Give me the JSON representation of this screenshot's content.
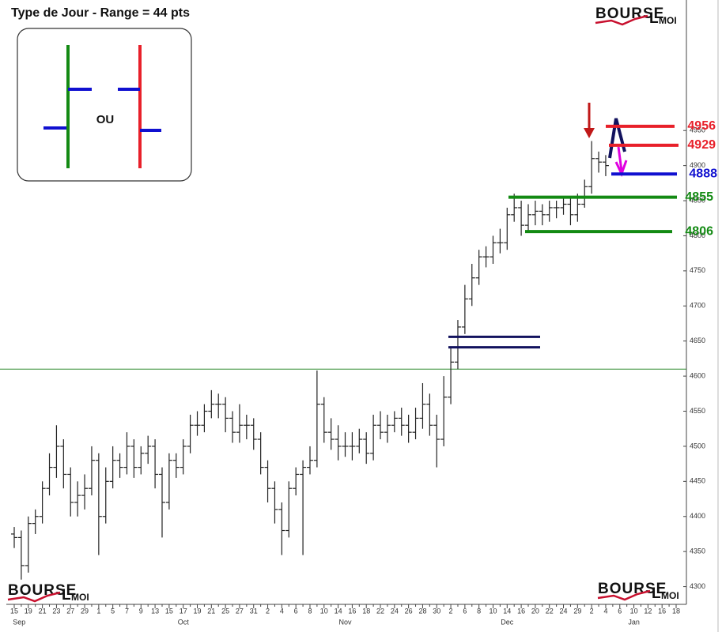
{
  "logo": {
    "main": "BOURSE",
    "l": "L",
    "sub": "MOI"
  },
  "chart_data": {
    "type": "ohlc",
    "title": "Type de Jour - Range = 44 pts",
    "annotation": "OU",
    "categories": [
      "15",
      null,
      "19",
      null,
      "21",
      null,
      "23",
      null,
      "27",
      null,
      "29",
      null,
      "1",
      null,
      "5",
      null,
      "7",
      null,
      "9",
      null,
      "13",
      null,
      "15",
      null,
      "17",
      null,
      "19",
      null,
      "21",
      null,
      "25",
      null,
      "27",
      null,
      "31",
      null,
      "2",
      null,
      "4",
      null,
      "6",
      null,
      "8",
      null,
      "10",
      null,
      "14",
      null,
      "16",
      null,
      "18",
      null,
      "22",
      null,
      "24",
      null,
      "26",
      null,
      "28",
      null,
      "30",
      null,
      "2",
      null,
      "6",
      null,
      "8",
      null,
      "10",
      null,
      "14",
      null,
      "16",
      null,
      "20",
      null,
      "22",
      null,
      "24",
      null,
      "29",
      null,
      "2",
      null,
      "4",
      null,
      "6",
      null,
      "10",
      null,
      "12",
      null,
      "16",
      null,
      "18"
    ],
    "months": [
      "Sep",
      "Oct",
      "Nov",
      "Dec",
      "Jan"
    ],
    "open": [
      4375,
      4370,
      4330,
      4390,
      4400,
      4440,
      4470,
      4500,
      4460,
      4420,
      4430,
      4440,
      4480,
      4400,
      4450,
      4480,
      4470,
      4500,
      4470,
      4490,
      4500,
      4460,
      4420,
      4480,
      4470,
      4500,
      4530,
      4530,
      4550,
      4560,
      4560,
      4540,
      4520,
      4530,
      4530,
      4510,
      4470,
      4440,
      4410,
      4380,
      4440,
      4460,
      4470,
      4480,
      4560,
      4520,
      4510,
      4500,
      4500,
      4500,
      4510,
      4490,
      4530,
      4520,
      4530,
      4540,
      4530,
      4520,
      4540,
      4560,
      4530,
      4510,
      4570,
      4620,
      4670,
      4710,
      4740,
      4770,
      4770,
      4790,
      4790,
      4830,
      4840,
      4815,
      4830,
      4835,
      4830,
      4840,
      4840,
      4845,
      4830,
      4845,
      4870,
      4910,
      4905,
      null,
      null,
      null,
      null,
      null,
      null,
      null,
      null,
      null,
      null
    ],
    "high": [
      4385,
      4380,
      4400,
      4410,
      4450,
      4490,
      4530,
      4510,
      4470,
      4450,
      4460,
      4500,
      4490,
      4470,
      4500,
      4490,
      4520,
      4510,
      4500,
      4515,
      4510,
      4470,
      4490,
      4490,
      4510,
      4545,
      4550,
      4560,
      4580,
      4575,
      4570,
      4550,
      4560,
      4545,
      4540,
      4520,
      4480,
      4450,
      4420,
      4450,
      4470,
      4480,
      4500,
      4608,
      4570,
      4540,
      4530,
      4520,
      4520,
      4525,
      4520,
      4545,
      4550,
      4545,
      4550,
      4555,
      4545,
      4555,
      4590,
      4575,
      4545,
      4600,
      4640,
      4680,
      4730,
      4760,
      4780,
      4785,
      4800,
      4810,
      4840,
      4860,
      4850,
      4845,
      4850,
      4845,
      4850,
      4850,
      4855,
      4855,
      4860,
      4880,
      4935,
      4920,
      4915,
      null,
      null,
      null,
      null,
      null,
      null,
      null,
      null,
      null,
      null
    ],
    "low": [
      4355,
      4310,
      4320,
      4375,
      4390,
      4430,
      4455,
      4440,
      4400,
      4400,
      4410,
      4430,
      4345,
      4390,
      4440,
      4455,
      4460,
      4455,
      4460,
      4475,
      4440,
      4370,
      4410,
      4455,
      4460,
      4490,
      4515,
      4520,
      4540,
      4540,
      4520,
      4505,
      4505,
      4510,
      4495,
      4460,
      4420,
      4390,
      4345,
      4370,
      4430,
      4345,
      4460,
      4470,
      4505,
      4495,
      4480,
      4485,
      4480,
      4490,
      4475,
      4480,
      4510,
      4505,
      4520,
      4515,
      4505,
      4510,
      4525,
      4515,
      4470,
      4500,
      4560,
      4610,
      4660,
      4700,
      4730,
      4755,
      4760,
      4775,
      4780,
      4820,
      4800,
      4805,
      4815,
      4815,
      4820,
      4825,
      4830,
      4815,
      4820,
      4840,
      4860,
      4890,
      4885,
      null,
      null,
      null,
      null,
      null,
      null,
      null,
      null,
      null,
      null
    ],
    "close": [
      4370,
      4330,
      4390,
      4400,
      4440,
      4470,
      4500,
      4460,
      4420,
      4430,
      4440,
      4480,
      4400,
      4450,
      4480,
      4470,
      4500,
      4470,
      4490,
      4500,
      4460,
      4420,
      4480,
      4470,
      4500,
      4530,
      4530,
      4550,
      4560,
      4560,
      4540,
      4520,
      4530,
      4530,
      4510,
      4470,
      4440,
      4410,
      4380,
      4440,
      4460,
      4470,
      4480,
      4560,
      4520,
      4510,
      4500,
      4500,
      4500,
      4510,
      4490,
      4530,
      4520,
      4530,
      4540,
      4530,
      4520,
      4540,
      4560,
      4530,
      4510,
      4570,
      4620,
      4670,
      4710,
      4740,
      4770,
      4770,
      4790,
      4790,
      4830,
      4840,
      4815,
      4830,
      4835,
      4830,
      4840,
      4840,
      4845,
      4830,
      4845,
      4870,
      4910,
      4905,
      4900,
      null,
      null,
      null,
      null,
      null,
      null,
      null,
      null,
      null,
      null
    ],
    "color": "#222222",
    "ylim": [
      4277,
      5127
    ],
    "yticks": [
      4300,
      4350,
      4400,
      4450,
      4500,
      4550,
      4600,
      4650,
      4700,
      4750,
      4800,
      4850,
      4900,
      4950
    ],
    "levels": [
      {
        "value": 4956,
        "color": "#e8202a"
      },
      {
        "value": 4929,
        "color": "#e8202a"
      },
      {
        "value": 4888,
        "color": "#1010d0"
      },
      {
        "value": 4855,
        "color": "#138a13"
      },
      {
        "value": 4806,
        "color": "#138a13"
      }
    ],
    "zone_lines": [
      {
        "value": 4656,
        "color": "#12125e"
      },
      {
        "value": 4641,
        "color": "#12125e"
      }
    ],
    "reference_line": {
      "value": 4610,
      "color": "#2e8b2e"
    }
  }
}
